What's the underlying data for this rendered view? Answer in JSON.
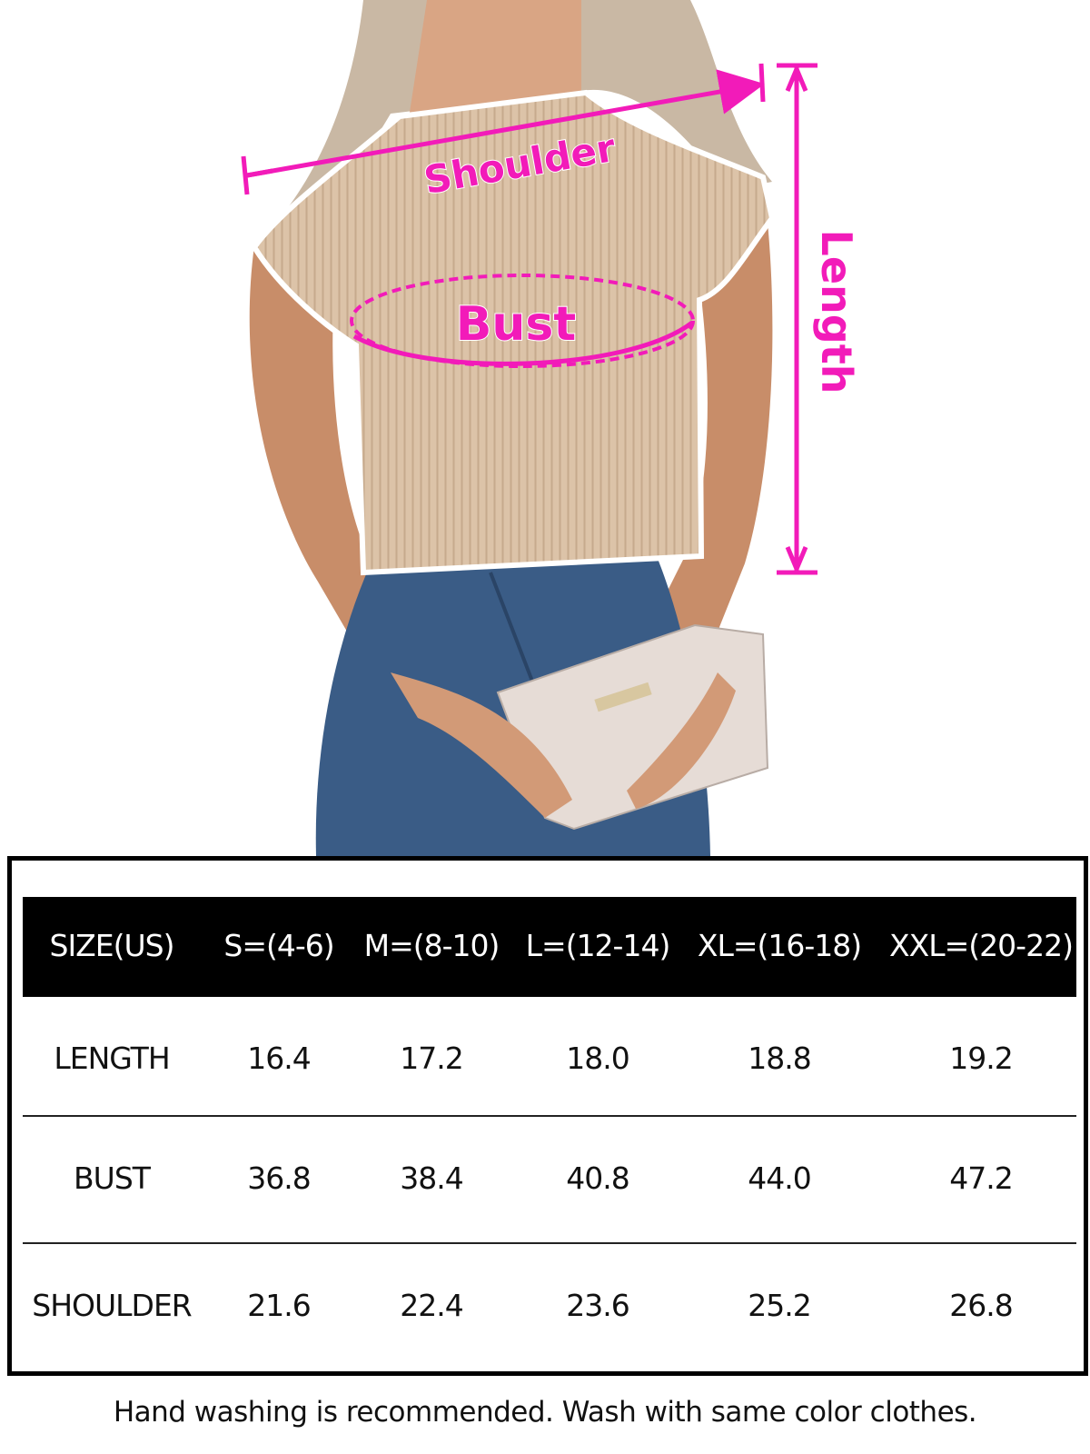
{
  "annotations": {
    "shoulder": "Shoulder",
    "bust": "Bust",
    "length": "Length"
  },
  "colors": {
    "annotation": "#f21bb9",
    "header_bg": "#000000",
    "sweater": "#d9bfa4",
    "jeans": "#3a5c86"
  },
  "table": {
    "headers": [
      "SIZE(US)",
      "S=(4-6)",
      "M=(8-10)",
      "L=(12-14)",
      "XL=(16-18)",
      "XXL=(20-22)"
    ],
    "rows": [
      {
        "label": "LENGTH",
        "values": [
          "16.4",
          "17.2",
          "18.0",
          "18.8",
          "19.2"
        ]
      },
      {
        "label": "BUST",
        "values": [
          "36.8",
          "38.4",
          "40.8",
          "44.0",
          "47.2"
        ]
      },
      {
        "label": "SHOULDER",
        "values": [
          "21.6",
          "22.4",
          "23.6",
          "25.2",
          "26.8"
        ]
      }
    ]
  },
  "footer": "Hand washing is recommended. Wash with same color clothes."
}
